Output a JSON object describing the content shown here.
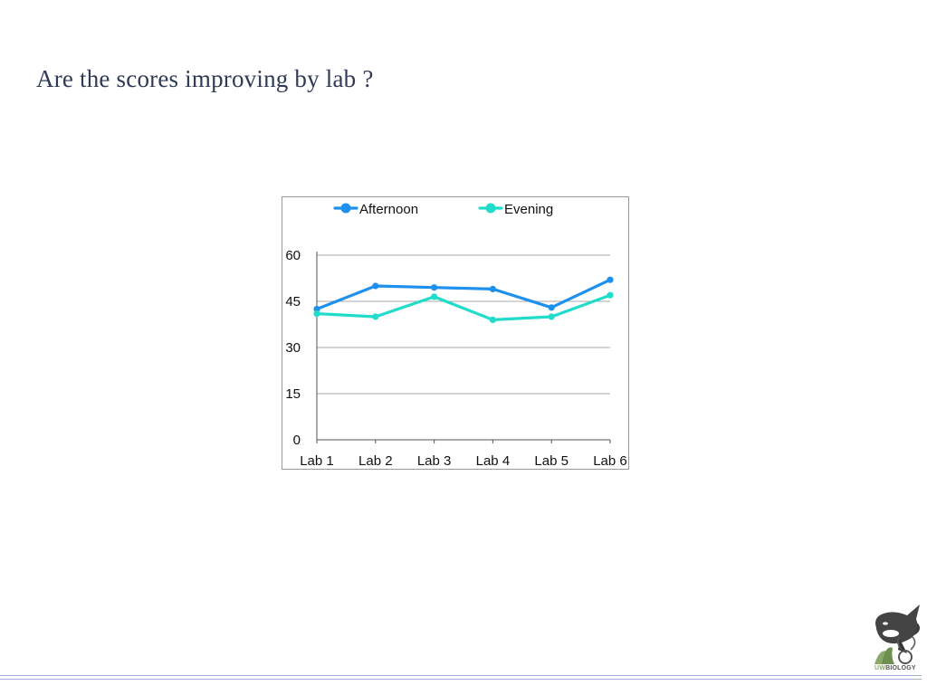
{
  "slide": {
    "title": "Are the scores improving by lab ?"
  },
  "logo": {
    "text_prefix": "UW",
    "text_suffix": "BIOLOGY",
    "icon": "orca-logo"
  },
  "colors": {
    "afternoon": "#1e90ee",
    "evening": "#22dccb",
    "gridline": "#a8a8a8",
    "title": "#2f3a55"
  },
  "chart_data": {
    "type": "line",
    "title": "",
    "xlabel": "",
    "ylabel": "",
    "categories": [
      "Lab 1",
      "Lab 2",
      "Lab 3",
      "Lab 4",
      "Lab 5",
      "Lab 6"
    ],
    "ylim": [
      0,
      60
    ],
    "yticks": [
      0,
      15,
      30,
      45,
      60
    ],
    "grid": true,
    "legend": "top",
    "series": [
      {
        "name": "Afternoon",
        "values": [
          42.5,
          50,
          49.5,
          49,
          43,
          52
        ]
      },
      {
        "name": "Evening",
        "values": [
          41,
          40,
          46.5,
          39,
          40,
          47
        ]
      }
    ]
  }
}
